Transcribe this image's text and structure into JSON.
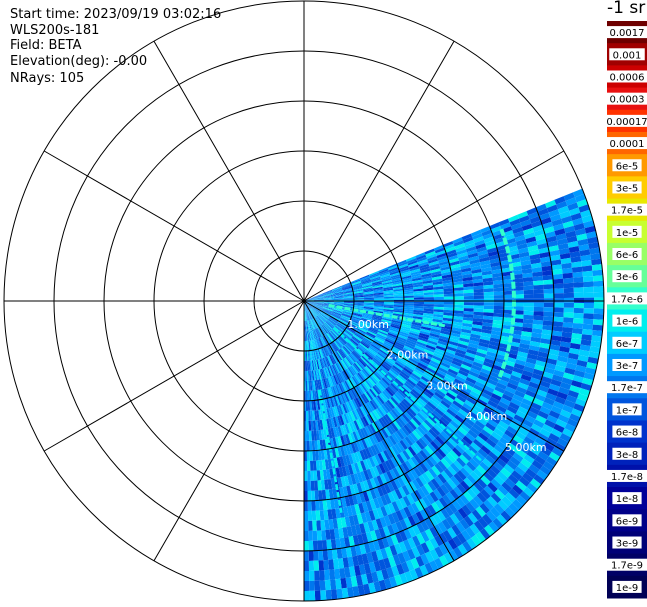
{
  "header": {
    "start_time": "Start time: 2023/09/19 03:02:16",
    "instrument": "WLS200s-181",
    "field": "Field: BETA",
    "elevation": "Elevation(deg): -0.00",
    "nrays": "NRays: 105"
  },
  "colorbar": {
    "unit_label": "-1 sr",
    "tick_labels": [
      "0.0017",
      "0.001",
      "0.0006",
      "0.0003",
      "0.00017",
      "0.0001",
      "6e-5",
      "3e-5",
      "1.7e-5",
      "1e-5",
      "6e-6",
      "3e-6",
      "1.7e-6",
      "1e-6",
      "6e-7",
      "3e-7",
      "1.7e-7",
      "1e-7",
      "6e-8",
      "3e-8",
      "1.7e-8",
      "1e-8",
      "6e-9",
      "3e-9",
      "1.7e-9",
      "1e-9"
    ],
    "colors": [
      "#6e0000",
      "#a00000",
      "#cc0000",
      "#e81010",
      "#ff3300",
      "#ff6600",
      "#ff9900",
      "#ffcc00",
      "#e8e800",
      "#c8ff30",
      "#99ff66",
      "#66ff99",
      "#33ffcc",
      "#00eeee",
      "#00ccff",
      "#0099ff",
      "#0077ee",
      "#0055dd",
      "#0033cc",
      "#0022bb",
      "#0011aa",
      "#000099",
      "#000088",
      "#000077",
      "#000066",
      "#000055"
    ]
  },
  "chart_data": {
    "type": "ppi",
    "title": "",
    "range_rings_km": [
      1,
      2,
      3,
      4,
      5
    ],
    "range_labels": [
      "1.00km",
      "2.00km",
      "3.00km",
      "4.00km",
      "5.00km"
    ],
    "max_range_km": 6,
    "spoke_interval_deg": 30,
    "sector_azimuth_deg": [
      68,
      180
    ],
    "nrays": 105,
    "color_scale": "log",
    "value_range": [
      1e-09,
      0.0017
    ],
    "background_beta": 3e-07,
    "features": [
      {
        "name": "arc",
        "range_km": 4.2,
        "azimuth_deg": [
          70,
          112
        ],
        "beta": 1.7e-06
      },
      {
        "name": "line",
        "range_km": [
          0.5,
          2.9
        ],
        "azimuth_deg": 100,
        "beta": 1.7e-06
      },
      {
        "name": "streak",
        "range_km": [
          0.8,
          4.8
        ],
        "azimuth_deg": 132,
        "beta": 1e-06
      },
      {
        "name": "streak",
        "range_km": [
          1.8,
          4.3
        ],
        "azimuth_deg": 170,
        "beta": 1e-06
      }
    ]
  }
}
